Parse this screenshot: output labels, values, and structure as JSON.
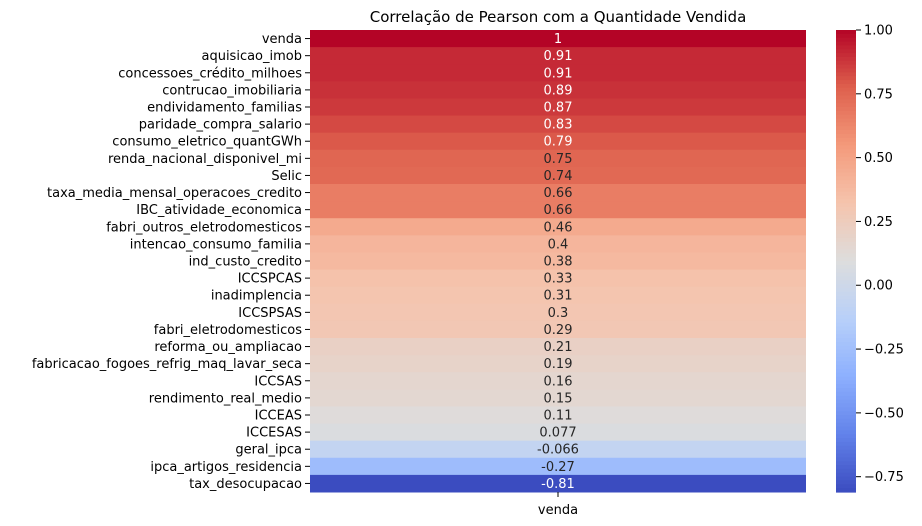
{
  "chart_data": {
    "type": "heatmap",
    "title": "Correlação de Pearson com a Quantidade Vendida",
    "columns": [
      "venda"
    ],
    "rows": [
      {
        "label": "venda",
        "value": 1,
        "display": "1"
      },
      {
        "label": "aquisicao_imob",
        "value": 0.91,
        "display": "0.91"
      },
      {
        "label": "concessoes_crédito_milhoes",
        "value": 0.91,
        "display": "0.91"
      },
      {
        "label": "contrucao_imobiliaria",
        "value": 0.89,
        "display": "0.89"
      },
      {
        "label": "endividamento_familias",
        "value": 0.87,
        "display": "0.87"
      },
      {
        "label": "paridade_compra_salario",
        "value": 0.83,
        "display": "0.83"
      },
      {
        "label": "consumo_eletrico_quantGWh",
        "value": 0.79,
        "display": "0.79"
      },
      {
        "label": "renda_nacional_disponivel_mi",
        "value": 0.75,
        "display": "0.75"
      },
      {
        "label": "Selic",
        "value": 0.74,
        "display": "0.74"
      },
      {
        "label": "taxa_media_mensal_operacoes_credito",
        "value": 0.66,
        "display": "0.66"
      },
      {
        "label": "IBC_atividade_economica",
        "value": 0.66,
        "display": "0.66"
      },
      {
        "label": "fabri_outros_eletrodomesticos",
        "value": 0.46,
        "display": "0.46"
      },
      {
        "label": "intencao_consumo_familia",
        "value": 0.4,
        "display": "0.4"
      },
      {
        "label": "ind_custo_credito",
        "value": 0.38,
        "display": "0.38"
      },
      {
        "label": "ICCSPCAS",
        "value": 0.33,
        "display": "0.33"
      },
      {
        "label": "inadimplencia",
        "value": 0.31,
        "display": "0.31"
      },
      {
        "label": "ICCSPSAS",
        "value": 0.3,
        "display": "0.3"
      },
      {
        "label": "fabri_eletrodomesticos",
        "value": 0.29,
        "display": "0.29"
      },
      {
        "label": "reforma_ou_ampliacao",
        "value": 0.21,
        "display": "0.21"
      },
      {
        "label": "fabricacao_fogoes_refrig_maq_lavar_seca",
        "value": 0.19,
        "display": "0.19"
      },
      {
        "label": "ICCSAS",
        "value": 0.16,
        "display": "0.16"
      },
      {
        "label": "rendimento_real_medio",
        "value": 0.15,
        "display": "0.15"
      },
      {
        "label": "ICCEAS",
        "value": 0.11,
        "display": "0.11"
      },
      {
        "label": "ICCESAS",
        "value": 0.077,
        "display": "0.077"
      },
      {
        "label": "geral_ipca",
        "value": -0.066,
        "display": "-0.066"
      },
      {
        "label": "ipca_artigos_residencia",
        "value": -0.27,
        "display": "-0.27"
      },
      {
        "label": "tax_desocupacao",
        "value": -0.81,
        "display": "-0.81"
      }
    ],
    "colormap": "coolwarm",
    "colorbar": {
      "range": [
        -0.81,
        1
      ],
      "ticks": [
        1.0,
        0.75,
        0.5,
        0.25,
        0.0,
        -0.25,
        -0.5,
        -0.75
      ],
      "tick_labels": [
        "1.00",
        "0.75",
        "0.50",
        "0.25",
        "0.00",
        "−0.25",
        "−0.50",
        "−0.75"
      ]
    }
  }
}
